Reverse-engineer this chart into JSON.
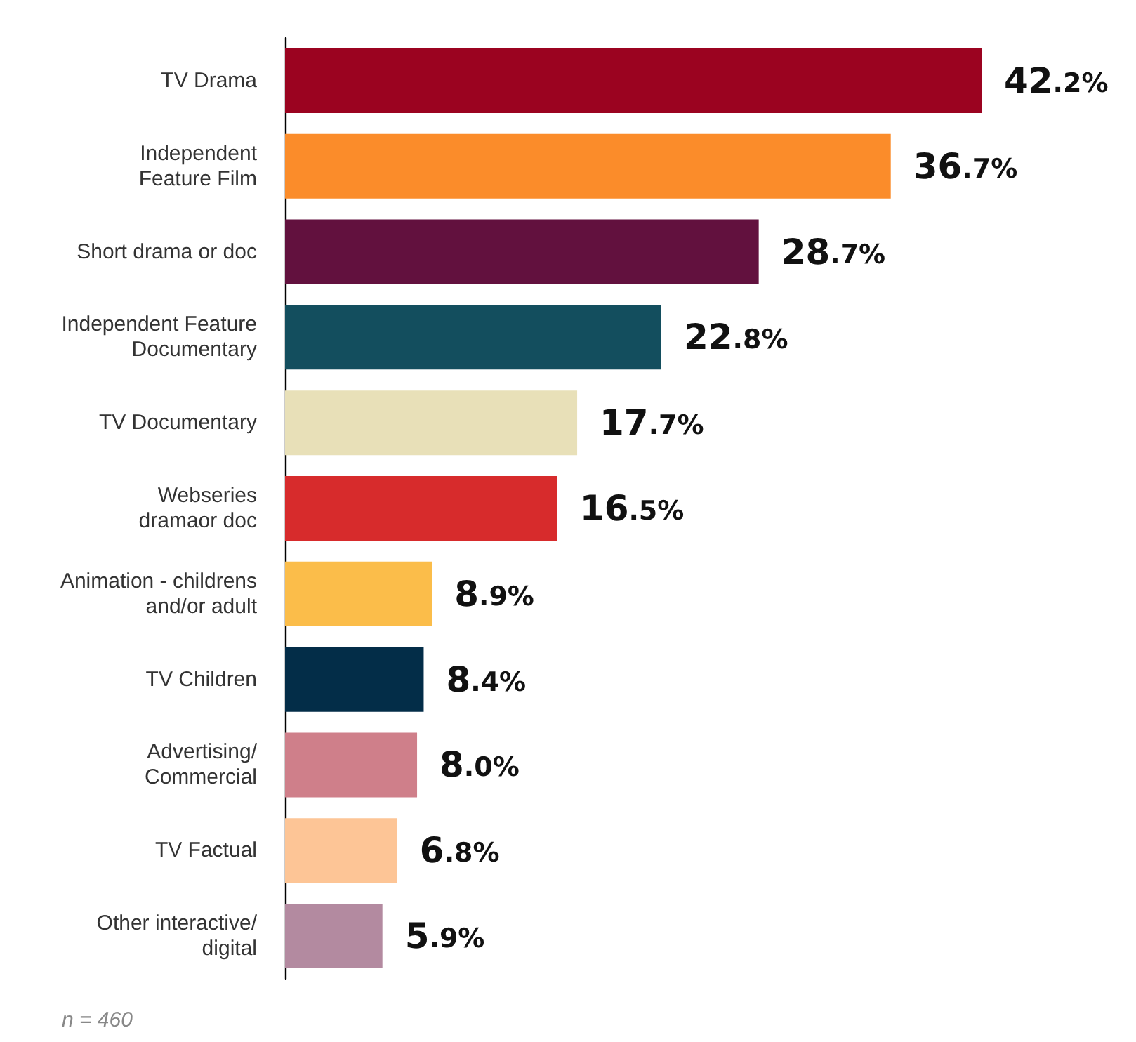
{
  "chart_data": {
    "type": "bar",
    "orientation": "horizontal",
    "categories": [
      "TV Drama",
      "Independent\nFeature Film",
      "Short drama or doc",
      "Independent Feature\nDocumentary",
      "TV Documentary",
      "Webseries\ndramaor doc",
      "Animation - childrens\nand/or adult",
      "TV Children",
      "Advertising/\nCommercial",
      "TV Factual",
      "Other interactive/\ndigital"
    ],
    "values": [
      42.2,
      36.7,
      28.7,
      22.8,
      17.7,
      16.5,
      8.9,
      8.4,
      8.0,
      6.8,
      5.9
    ],
    "value_labels": [
      "42.2%",
      "36.7%",
      "28.7%",
      "22.8%",
      "17.7%",
      "16.5%",
      "8.9%",
      "8.4%",
      "8.0%",
      "6.8%",
      "5.9%"
    ],
    "colors": [
      "#9b0320",
      "#fb8c2a",
      "#62113e",
      "#134e5e",
      "#e8e0b8",
      "#d72b2c",
      "#fbbd4a",
      "#032d48",
      "#cf7f8a",
      "#fdc596",
      "#b38aa0"
    ],
    "annotations": [
      "n = 460"
    ]
  }
}
